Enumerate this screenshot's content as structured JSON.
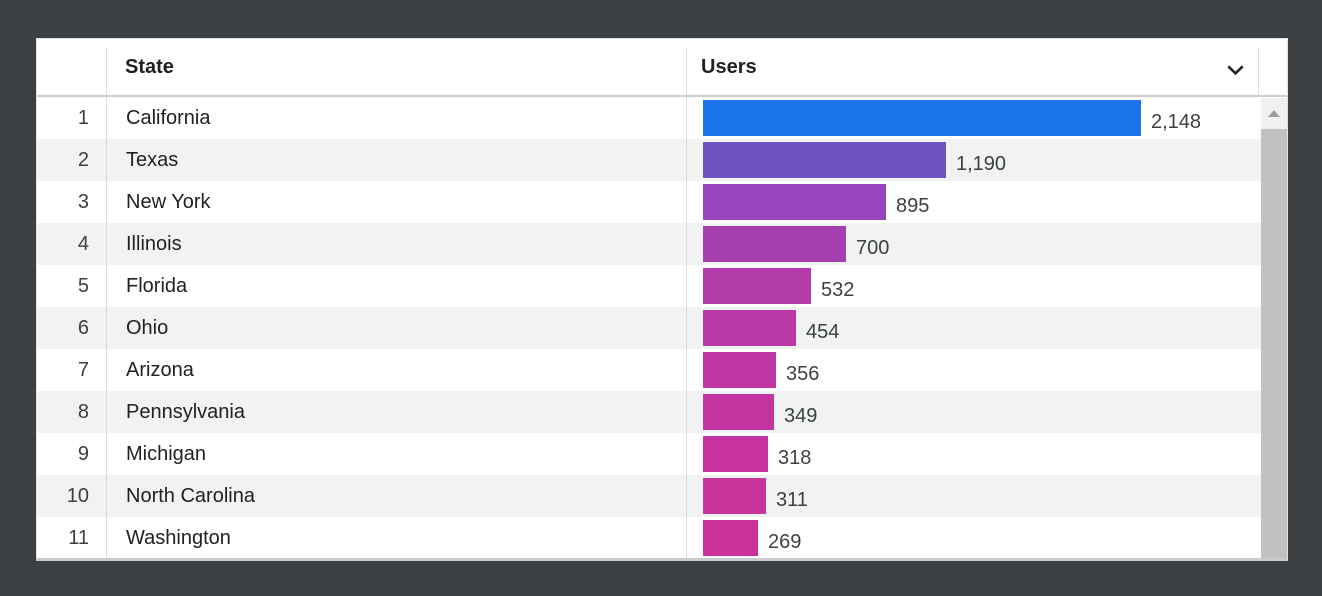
{
  "colors": {
    "page_background": "#3c4043",
    "card_background": "#ffffff",
    "row_stripe": "#f1f2f2",
    "divider": "#dadce0",
    "header_text": "#202124",
    "cell_text": "#3c4043",
    "scrollbar_track": "#f1f1f1",
    "scrollbar_thumb": "#c1c1c1"
  },
  "table": {
    "columns": {
      "state": "State",
      "users": "Users"
    },
    "sort_icon": "chevron-down-icon",
    "max_value": 2148,
    "rows": [
      {
        "rank": "1",
        "state": "California",
        "users": "2,148",
        "value": 2148,
        "color": "#1a73e8"
      },
      {
        "rank": "2",
        "state": "Texas",
        "users": "1,190",
        "value": 1190,
        "color": "#7152c1"
      },
      {
        "rank": "3",
        "state": "New York",
        "users": "895",
        "value": 895,
        "color": "#9645bd"
      },
      {
        "rank": "4",
        "state": "Illinois",
        "users": "700",
        "value": 700,
        "color": "#a53fb0"
      },
      {
        "rank": "5",
        "state": "Florida",
        "users": "532",
        "value": 532,
        "color": "#b23aa9"
      },
      {
        "rank": "6",
        "state": "Ohio",
        "users": "454",
        "value": 454,
        "color": "#b938a6"
      },
      {
        "rank": "7",
        "state": "Arizona",
        "users": "356",
        "value": 356,
        "color": "#bf36a3"
      },
      {
        "rank": "8",
        "state": "Pennsylvania",
        "users": "349",
        "value": 349,
        "color": "#c434a0"
      },
      {
        "rank": "9",
        "state": "Michigan",
        "users": "318",
        "value": 318,
        "color": "#c6339e"
      },
      {
        "rank": "10",
        "state": "North Carolina",
        "users": "311",
        "value": 311,
        "color": "#c8339c"
      },
      {
        "rank": "11",
        "state": "Washington",
        "users": "269",
        "value": 269,
        "color": "#ca3299"
      }
    ]
  },
  "chart_data": {
    "type": "bar",
    "orientation": "horizontal",
    "title": "",
    "xlabel": "Users",
    "ylabel": "State",
    "xlim": [
      0,
      2148
    ],
    "grid": false,
    "legend": "none",
    "categories": [
      "California",
      "Texas",
      "New York",
      "Illinois",
      "Florida",
      "Ohio",
      "Arizona",
      "Pennsylvania",
      "Michigan",
      "North Carolina",
      "Washington"
    ],
    "values": [
      2148,
      1190,
      895,
      700,
      532,
      454,
      356,
      349,
      318,
      311,
      269
    ],
    "value_labels": [
      "2,148",
      "1,190",
      "895",
      "700",
      "532",
      "454",
      "356",
      "349",
      "318",
      "311",
      "269"
    ],
    "bar_colors": [
      "#1a73e8",
      "#7152c1",
      "#9645bd",
      "#a53fb0",
      "#b23aa9",
      "#b938a6",
      "#bf36a3",
      "#c434a0",
      "#c6339e",
      "#c8339c",
      "#ca3299"
    ]
  }
}
